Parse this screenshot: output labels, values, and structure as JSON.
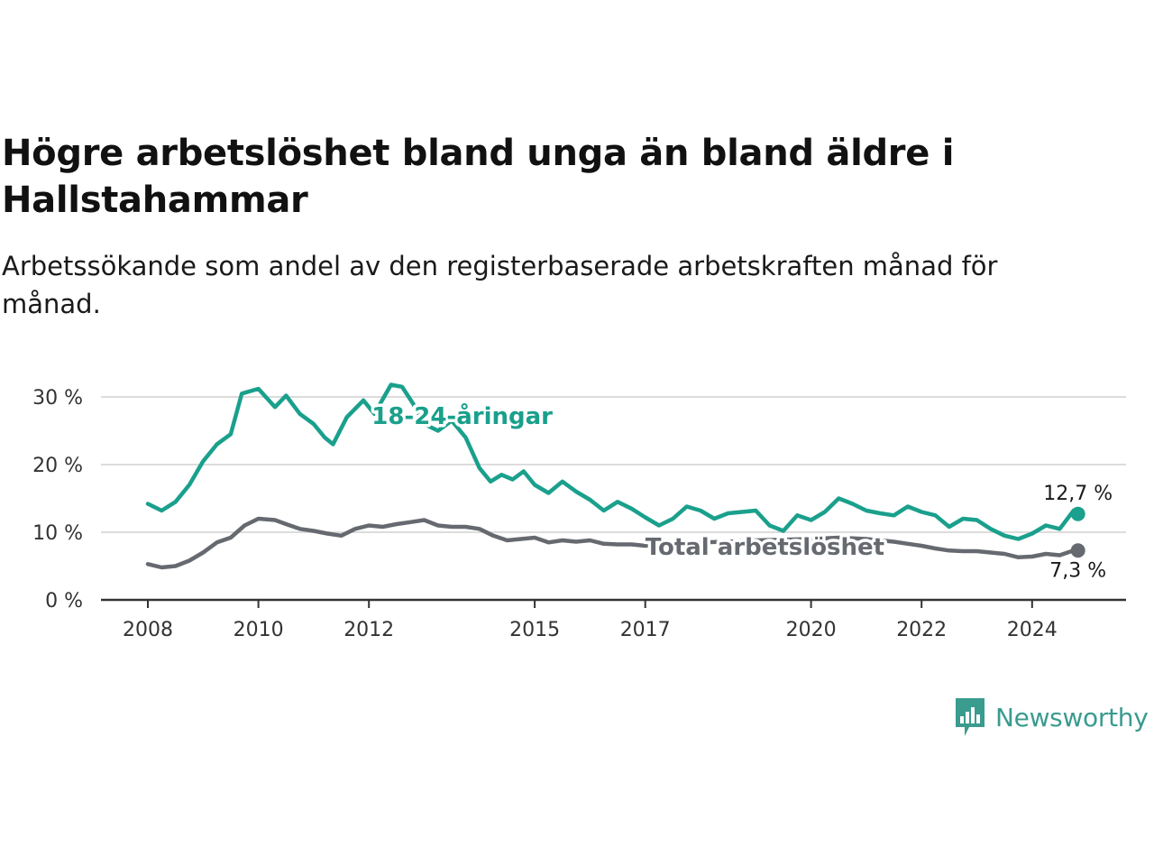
{
  "title": "Högre arbetslöshet bland unga än bland äldre i Hallstahammar",
  "subtitle": "Arbetssökande som andel av den registerbaserade arbetskraften månad för månad.",
  "brand": {
    "name": "Newsworthy",
    "color": "#3a9b8f",
    "icon": "bar-chart-speech-bubble-icon"
  },
  "chart_data": {
    "type": "line",
    "x_unit": "year (month resolution)",
    "xlim": [
      2008,
      2025.0
    ],
    "ylim": [
      0,
      30
    ],
    "grid": true,
    "x_ticks": [
      {
        "value": 2008,
        "label": "2008"
      },
      {
        "value": 2010,
        "label": "2010"
      },
      {
        "value": 2012,
        "label": "2012"
      },
      {
        "value": 2015,
        "label": "2015"
      },
      {
        "value": 2017,
        "label": "2017"
      },
      {
        "value": 2020,
        "label": "2020"
      },
      {
        "value": 2022,
        "label": "2022"
      },
      {
        "value": 2024,
        "label": "2024"
      }
    ],
    "y_ticks": [
      {
        "value": 0,
        "label": "0 %"
      },
      {
        "value": 10,
        "label": "10 %"
      },
      {
        "value": 20,
        "label": "20 %"
      },
      {
        "value": 30,
        "label": "30 %"
      }
    ],
    "series": [
      {
        "name": "18-24-åringar",
        "color": "#1aa08c",
        "end_label": "12,7 %",
        "points": [
          [
            2008.0,
            14.2
          ],
          [
            2008.25,
            13.2
          ],
          [
            2008.5,
            14.5
          ],
          [
            2008.75,
            17.0
          ],
          [
            2009.0,
            20.5
          ],
          [
            2009.25,
            23.0
          ],
          [
            2009.5,
            24.5
          ],
          [
            2009.7,
            30.5
          ],
          [
            2010.0,
            31.2
          ],
          [
            2010.3,
            28.5
          ],
          [
            2010.5,
            30.2
          ],
          [
            2010.75,
            27.5
          ],
          [
            2011.0,
            26.0
          ],
          [
            2011.2,
            24.0
          ],
          [
            2011.35,
            23.0
          ],
          [
            2011.6,
            27.0
          ],
          [
            2011.9,
            29.5
          ],
          [
            2012.1,
            27.5
          ],
          [
            2012.4,
            31.8
          ],
          [
            2012.6,
            31.5
          ],
          [
            2012.8,
            29.0
          ],
          [
            2013.0,
            26.0
          ],
          [
            2013.25,
            25.0
          ],
          [
            2013.5,
            26.5
          ],
          [
            2013.75,
            24.0
          ],
          [
            2014.0,
            19.5
          ],
          [
            2014.2,
            17.5
          ],
          [
            2014.4,
            18.5
          ],
          [
            2014.6,
            17.8
          ],
          [
            2014.8,
            19.0
          ],
          [
            2015.0,
            17.0
          ],
          [
            2015.25,
            15.8
          ],
          [
            2015.5,
            17.5
          ],
          [
            2015.75,
            16.0
          ],
          [
            2016.0,
            14.8
          ],
          [
            2016.25,
            13.2
          ],
          [
            2016.5,
            14.5
          ],
          [
            2016.75,
            13.5
          ],
          [
            2017.0,
            12.2
          ],
          [
            2017.25,
            11.0
          ],
          [
            2017.5,
            12.0
          ],
          [
            2017.75,
            13.8
          ],
          [
            2018.0,
            13.2
          ],
          [
            2018.25,
            12.0
          ],
          [
            2018.5,
            12.8
          ],
          [
            2018.75,
            13.0
          ],
          [
            2019.0,
            13.2
          ],
          [
            2019.25,
            11.0
          ],
          [
            2019.5,
            10.2
          ],
          [
            2019.75,
            12.5
          ],
          [
            2020.0,
            11.8
          ],
          [
            2020.25,
            13.0
          ],
          [
            2020.5,
            15.0
          ],
          [
            2020.75,
            14.2
          ],
          [
            2021.0,
            13.2
          ],
          [
            2021.25,
            12.8
          ],
          [
            2021.5,
            12.5
          ],
          [
            2021.75,
            13.8
          ],
          [
            2022.0,
            13.0
          ],
          [
            2022.25,
            12.5
          ],
          [
            2022.5,
            10.8
          ],
          [
            2022.75,
            12.0
          ],
          [
            2023.0,
            11.8
          ],
          [
            2023.25,
            10.5
          ],
          [
            2023.5,
            9.5
          ],
          [
            2023.75,
            9.0
          ],
          [
            2024.0,
            9.8
          ],
          [
            2024.25,
            11.0
          ],
          [
            2024.5,
            10.5
          ],
          [
            2024.75,
            13.2
          ],
          [
            2024.83,
            12.7
          ]
        ]
      },
      {
        "name": "Total arbetslöshet",
        "color": "#666a70",
        "end_label": "7,3 %",
        "points": [
          [
            2008.0,
            5.3
          ],
          [
            2008.25,
            4.8
          ],
          [
            2008.5,
            5.0
          ],
          [
            2008.75,
            5.8
          ],
          [
            2009.0,
            7.0
          ],
          [
            2009.25,
            8.5
          ],
          [
            2009.5,
            9.2
          ],
          [
            2009.75,
            11.0
          ],
          [
            2010.0,
            12.0
          ],
          [
            2010.3,
            11.8
          ],
          [
            2010.5,
            11.2
          ],
          [
            2010.75,
            10.5
          ],
          [
            2011.0,
            10.2
          ],
          [
            2011.25,
            9.8
          ],
          [
            2011.5,
            9.5
          ],
          [
            2011.75,
            10.5
          ],
          [
            2012.0,
            11.0
          ],
          [
            2012.25,
            10.8
          ],
          [
            2012.5,
            11.2
          ],
          [
            2012.75,
            11.5
          ],
          [
            2013.0,
            11.8
          ],
          [
            2013.25,
            11.0
          ],
          [
            2013.5,
            10.8
          ],
          [
            2013.75,
            10.8
          ],
          [
            2014.0,
            10.5
          ],
          [
            2014.25,
            9.5
          ],
          [
            2014.5,
            8.8
          ],
          [
            2014.75,
            9.0
          ],
          [
            2015.0,
            9.2
          ],
          [
            2015.25,
            8.5
          ],
          [
            2015.5,
            8.8
          ],
          [
            2015.75,
            8.6
          ],
          [
            2016.0,
            8.8
          ],
          [
            2016.25,
            8.3
          ],
          [
            2016.5,
            8.2
          ],
          [
            2016.75,
            8.2
          ],
          [
            2017.0,
            8.0
          ],
          [
            2017.5,
            8.3
          ],
          [
            2018.0,
            8.5
          ],
          [
            2018.5,
            8.6
          ],
          [
            2019.0,
            8.8
          ],
          [
            2019.5,
            8.9
          ],
          [
            2020.0,
            9.0
          ],
          [
            2020.5,
            9.2
          ],
          [
            2021.0,
            9.0
          ],
          [
            2021.5,
            8.6
          ],
          [
            2021.75,
            8.3
          ],
          [
            2022.0,
            8.0
          ],
          [
            2022.25,
            7.6
          ],
          [
            2022.5,
            7.3
          ],
          [
            2022.75,
            7.2
          ],
          [
            2023.0,
            7.2
          ],
          [
            2023.25,
            7.0
          ],
          [
            2023.5,
            6.8
          ],
          [
            2023.75,
            6.3
          ],
          [
            2024.0,
            6.4
          ],
          [
            2024.25,
            6.8
          ],
          [
            2024.5,
            6.6
          ],
          [
            2024.75,
            7.3
          ],
          [
            2024.83,
            7.3
          ]
        ]
      }
    ]
  }
}
